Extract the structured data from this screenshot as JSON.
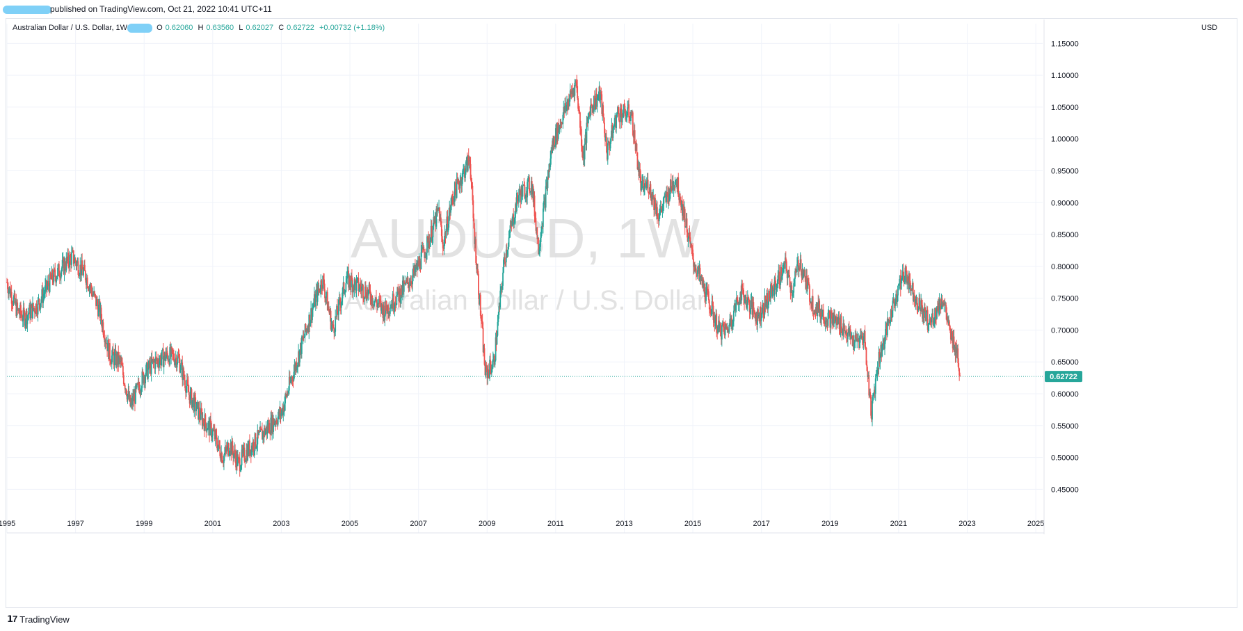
{
  "header": {
    "published_text": "published on TradingView.com, Oct 21, 2022 10:41 UTC+11"
  },
  "legend": {
    "symbol": "Australian Dollar / U.S. Dollar, 1W",
    "open_label": "O",
    "open": "0.62060",
    "high_label": "H",
    "high": "0.63560",
    "low_label": "L",
    "low": "0.62027",
    "close_label": "C",
    "close": "0.62722",
    "change": "+0.00732 (+1.18%)"
  },
  "price_axis_currency": "USD",
  "footer": {
    "brand": "TradingView",
    "logo_icon": "tradingview-logo-icon"
  },
  "colors": {
    "up": "#26a69a",
    "down": "#ef5350",
    "grid": "#f0f3fa",
    "watermark": "#d6d6d6"
  },
  "chart_data": {
    "type": "candlestick",
    "watermark_symbol": "AUDUSD, 1W",
    "watermark_description": "Australian Dollar / U.S. Dollar",
    "x_ticks": [
      "1995",
      "1997",
      "1999",
      "2001",
      "2003",
      "2005",
      "2007",
      "2009",
      "2011",
      "2013",
      "2015",
      "2017",
      "2019",
      "2021",
      "2023",
      "2025"
    ],
    "y_ticks": [
      "1.15000",
      "1.10000",
      "1.05000",
      "1.00000",
      "0.95000",
      "0.90000",
      "0.85000",
      "0.80000",
      "0.75000",
      "0.70000",
      "0.65000",
      "0.60000",
      "0.55000",
      "0.50000",
      "0.45000"
    ],
    "xlim": [
      1995,
      2025.2
    ],
    "ylim": [
      0.41,
      1.17
    ],
    "last_price": "0.62722",
    "series": [
      {
        "anchors": [
          [
            1995.0,
            0.775
          ],
          [
            1995.3,
            0.73
          ],
          [
            1995.5,
            0.72
          ],
          [
            1995.9,
            0.74
          ],
          [
            1996.3,
            0.78
          ],
          [
            1996.9,
            0.815
          ],
          [
            1997.3,
            0.785
          ],
          [
            1997.7,
            0.73
          ],
          [
            1998.0,
            0.66
          ],
          [
            1998.3,
            0.65
          ],
          [
            1998.6,
            0.58
          ],
          [
            1999.0,
            0.63
          ],
          [
            1999.3,
            0.65
          ],
          [
            1999.7,
            0.66
          ],
          [
            2000.0,
            0.655
          ],
          [
            2000.3,
            0.6
          ],
          [
            2000.7,
            0.56
          ],
          [
            2001.0,
            0.54
          ],
          [
            2001.3,
            0.5
          ],
          [
            2001.5,
            0.52
          ],
          [
            2001.75,
            0.49
          ],
          [
            2002.0,
            0.51
          ],
          [
            2002.5,
            0.54
          ],
          [
            2003.0,
            0.57
          ],
          [
            2003.5,
            0.66
          ],
          [
            2004.0,
            0.75
          ],
          [
            2004.2,
            0.78
          ],
          [
            2004.5,
            0.7
          ],
          [
            2004.9,
            0.78
          ],
          [
            2005.5,
            0.76
          ],
          [
            2006.0,
            0.73
          ],
          [
            2006.5,
            0.76
          ],
          [
            2006.9,
            0.79
          ],
          [
            2007.3,
            0.84
          ],
          [
            2007.6,
            0.89
          ],
          [
            2007.7,
            0.83
          ],
          [
            2008.0,
            0.91
          ],
          [
            2008.5,
            0.97
          ],
          [
            2008.6,
            0.87
          ],
          [
            2008.85,
            0.7
          ],
          [
            2008.95,
            0.63
          ],
          [
            2009.2,
            0.65
          ],
          [
            2009.5,
            0.81
          ],
          [
            2009.9,
            0.91
          ],
          [
            2010.3,
            0.93
          ],
          [
            2010.5,
            0.83
          ],
          [
            2010.9,
            0.99
          ],
          [
            2011.3,
            1.05
          ],
          [
            2011.6,
            1.09
          ],
          [
            2011.8,
            0.97
          ],
          [
            2012.0,
            1.05
          ],
          [
            2012.3,
            1.07
          ],
          [
            2012.5,
            0.98
          ],
          [
            2012.8,
            1.04
          ],
          [
            2013.2,
            1.04
          ],
          [
            2013.5,
            0.92
          ],
          [
            2013.7,
            0.93
          ],
          [
            2014.0,
            0.88
          ],
          [
            2014.5,
            0.94
          ],
          [
            2014.75,
            0.88
          ],
          [
            2015.0,
            0.81
          ],
          [
            2015.5,
            0.74
          ],
          [
            2015.75,
            0.7
          ],
          [
            2016.0,
            0.7
          ],
          [
            2016.4,
            0.76
          ],
          [
            2016.9,
            0.72
          ],
          [
            2017.3,
            0.76
          ],
          [
            2017.7,
            0.8
          ],
          [
            2017.9,
            0.76
          ],
          [
            2018.1,
            0.81
          ],
          [
            2018.5,
            0.74
          ],
          [
            2018.9,
            0.72
          ],
          [
            2019.3,
            0.71
          ],
          [
            2019.7,
            0.68
          ],
          [
            2020.0,
            0.69
          ],
          [
            2020.2,
            0.57
          ],
          [
            2020.4,
            0.65
          ],
          [
            2020.7,
            0.71
          ],
          [
            2021.0,
            0.77
          ],
          [
            2021.2,
            0.79
          ],
          [
            2021.5,
            0.75
          ],
          [
            2021.9,
            0.71
          ],
          [
            2022.3,
            0.75
          ],
          [
            2022.5,
            0.69
          ],
          [
            2022.7,
            0.67
          ],
          [
            2022.8,
            0.627
          ]
        ]
      }
    ]
  }
}
